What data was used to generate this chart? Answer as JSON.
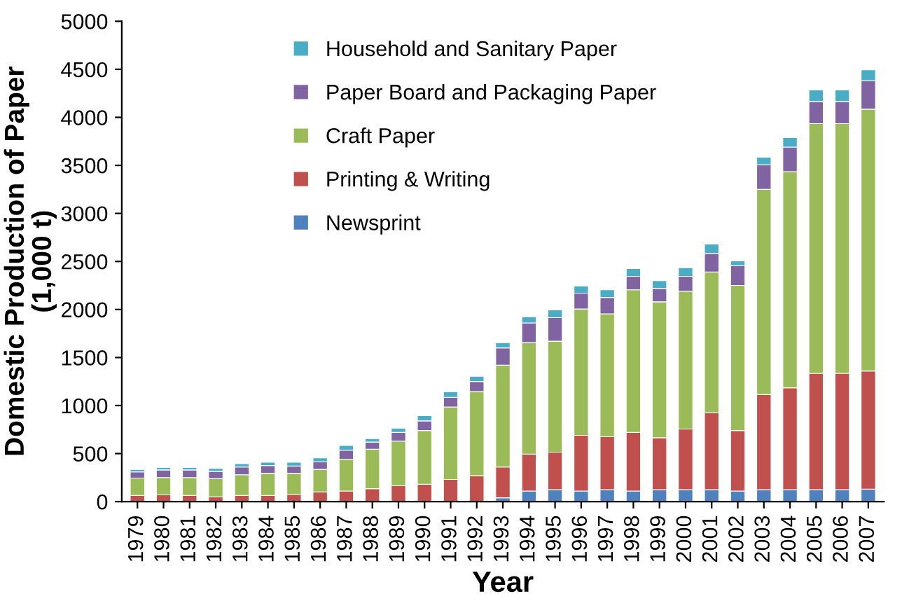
{
  "chart_data": {
    "type": "bar",
    "stacked": true,
    "xlabel": "Year",
    "ylabel": "Domestic Production of Paper\n(1,000 t)",
    "categories": [
      "1979",
      "1980",
      "1981",
      "1982",
      "1983",
      "1984",
      "1985",
      "1986",
      "1987",
      "1988",
      "1989",
      "1990",
      "1991",
      "1992",
      "1993",
      "1994",
      "1995",
      "1996",
      "1997",
      "1998",
      "1999",
      "2000",
      "2001",
      "2002",
      "2003",
      "2004",
      "2005",
      "2006",
      "2007"
    ],
    "series": [
      {
        "name": "Newsprint",
        "color": "#4f81bd",
        "values": [
          0,
          0,
          0,
          0,
          0,
          0,
          0,
          0,
          0,
          0,
          0,
          0,
          0,
          0,
          40,
          110,
          125,
          110,
          125,
          110,
          125,
          125,
          125,
          110,
          125,
          125,
          125,
          125,
          130
        ]
      },
      {
        "name": "Printing & Writing",
        "color": "#c0504d",
        "values": [
          65,
          70,
          65,
          50,
          65,
          65,
          75,
          100,
          110,
          135,
          165,
          180,
          230,
          270,
          320,
          385,
          390,
          580,
          550,
          610,
          540,
          630,
          800,
          630,
          990,
          1060,
          1210,
          1210,
          1230
        ]
      },
      {
        "name": "Craft Paper",
        "color": "#9bbb59",
        "values": [
          180,
          180,
          185,
          190,
          215,
          230,
          220,
          235,
          330,
          410,
          465,
          560,
          755,
          875,
          1060,
          1160,
          1155,
          1315,
          1280,
          1485,
          1415,
          1435,
          1465,
          1510,
          2135,
          2250,
          2600,
          2600,
          2725
        ]
      },
      {
        "name": "Paper Board and Packaging Paper",
        "color": "#8064a2",
        "values": [
          65,
          80,
          80,
          75,
          80,
          80,
          75,
          80,
          95,
          75,
          90,
          100,
          100,
          105,
          180,
          205,
          245,
          165,
          170,
          140,
          140,
          155,
          195,
          205,
          255,
          255,
          230,
          230,
          295
        ]
      },
      {
        "name": "Household and Sanitary Paper",
        "color": "#4bacc6",
        "values": [
          25,
          25,
          25,
          30,
          35,
          35,
          40,
          40,
          50,
          35,
          45,
          55,
          60,
          55,
          55,
          65,
          80,
          75,
          80,
          80,
          80,
          90,
          95,
          50,
          80,
          100,
          120,
          120,
          115
        ]
      }
    ],
    "ylim": [
      0,
      5000
    ],
    "yticks": [
      0,
      500,
      1000,
      1500,
      2000,
      2500,
      3000,
      3500,
      4000,
      4500,
      5000
    ],
    "grid": false,
    "legend": "top left"
  }
}
